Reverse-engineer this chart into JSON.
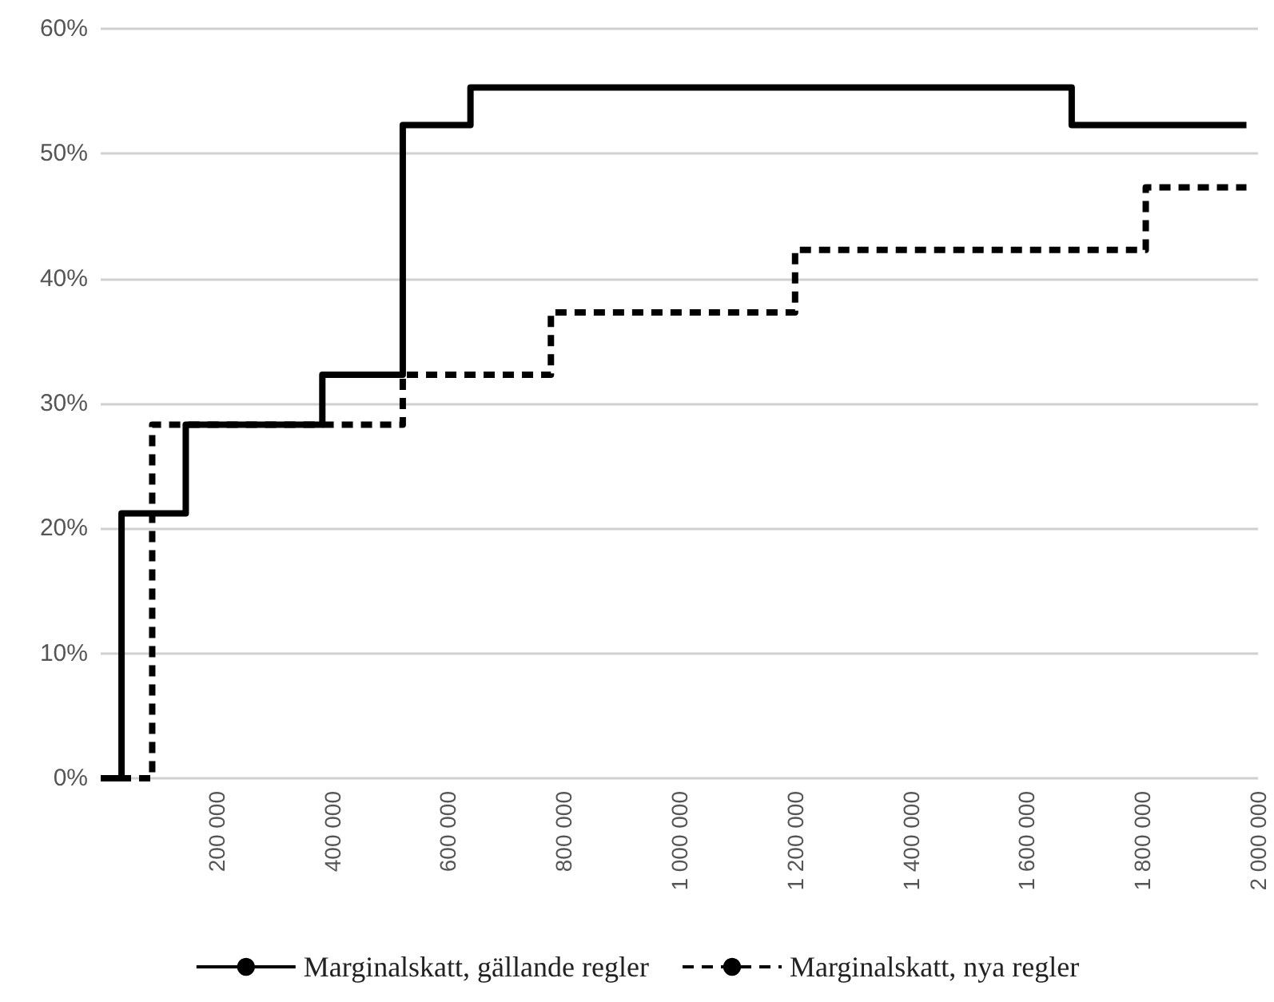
{
  "chart_data": {
    "type": "step",
    "series": [
      {
        "name": "Marginalskatt, gällande regler",
        "color": "#000000",
        "line_style": "solid",
        "x": [
          0,
          36000,
          147000,
          383000,
          522000,
          639000,
          1678000,
          1980000
        ],
        "values": [
          0,
          21.2,
          28.3,
          32.3,
          52.3,
          55.3,
          52.3,
          52.3
        ]
      },
      {
        "name": "Marginalskatt, nya regler",
        "color": "#000000",
        "line_style": "dashed",
        "x": [
          0,
          89000,
          522000,
          778000,
          1200000,
          1806000,
          1980000
        ],
        "values": [
          0,
          28.3,
          32.3,
          37.3,
          42.3,
          47.3,
          47.3
        ]
      }
    ],
    "xlim": [
      0,
      2000000
    ],
    "xticks": [
      {
        "value": 200000,
        "label": "200 000"
      },
      {
        "value": 400000,
        "label": "400 000"
      },
      {
        "value": 600000,
        "label": "600 000"
      },
      {
        "value": 800000,
        "label": "800 000"
      },
      {
        "value": 1000000,
        "label": "1 000 000"
      },
      {
        "value": 1200000,
        "label": "1 200 000"
      },
      {
        "value": 1400000,
        "label": "1 400 000"
      },
      {
        "value": 1600000,
        "label": "1 600 000"
      },
      {
        "value": 1800000,
        "label": "1 800 000"
      },
      {
        "value": 2000000,
        "label": "2 000 000"
      }
    ],
    "ylim": [
      0,
      60
    ],
    "yticks": [
      {
        "value": 0,
        "label": "0%"
      },
      {
        "value": 10,
        "label": "10%"
      },
      {
        "value": 20,
        "label": "20%"
      },
      {
        "value": 30,
        "label": "30%"
      },
      {
        "value": 40,
        "label": "40%"
      },
      {
        "value": 50,
        "label": "50%"
      },
      {
        "value": 60,
        "label": "60%"
      }
    ],
    "grid": "y",
    "legend": "bottom"
  }
}
